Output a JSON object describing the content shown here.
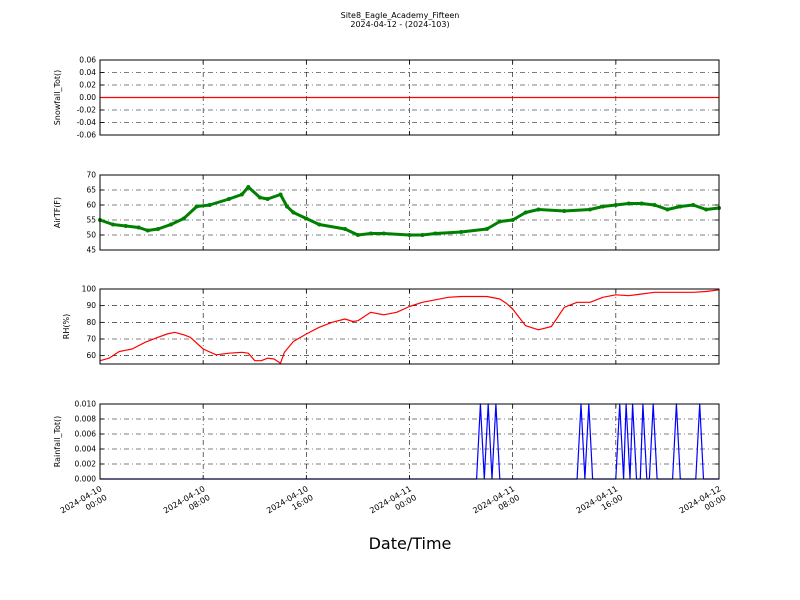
{
  "figure": {
    "title": "Site8_Eagle_Academy_Fifteen",
    "subtitle": "2024-04-12 - (2024-103)",
    "xlabel": "Date/Time"
  },
  "chart_data": [
    {
      "type": "line",
      "ylabel": "Snowfall_Tot()",
      "color": "#ff0000",
      "ylim": [
        -0.06,
        0.06
      ],
      "yticks": [
        "0.06",
        "0.04",
        "0.02",
        "0.00",
        "-0.02",
        "-0.04",
        "-0.06"
      ],
      "xlim": [
        0,
        48
      ],
      "grid": true,
      "series": [
        {
          "x": [
            0,
            48
          ],
          "y": [
            0,
            0
          ]
        }
      ]
    },
    {
      "type": "line",
      "ylabel": "AirTF(F)",
      "color": "#008000",
      "marker": true,
      "ylim": [
        45,
        70
      ],
      "yticks": [
        "70",
        "65",
        "60",
        "55",
        "50",
        "45"
      ],
      "xlim": [
        0,
        48
      ],
      "grid": true,
      "series": [
        {
          "x": [
            0,
            1,
            2,
            3,
            3.7,
            4.5,
            5.5,
            6.5,
            7.5,
            8.5,
            10,
            11,
            11.5,
            12.4,
            13,
            14,
            14.5,
            15,
            16,
            17,
            19,
            20,
            21,
            22,
            24,
            25,
            26,
            28,
            30,
            31,
            32,
            33,
            34,
            36,
            38,
            39,
            40,
            41,
            42,
            43,
            44,
            45,
            46,
            47,
            48
          ],
          "y": [
            55,
            53.5,
            53,
            52.5,
            51.5,
            52,
            53.5,
            55.5,
            59.5,
            60,
            62,
            63.5,
            66,
            62.5,
            62,
            63.5,
            59.5,
            57.5,
            55.5,
            53.5,
            52,
            50,
            50.5,
            50.5,
            50,
            50,
            50.5,
            51,
            52,
            54.5,
            55,
            57.5,
            58.5,
            58,
            58.5,
            59.5,
            60,
            60.5,
            60.5,
            60,
            58.5,
            59.5,
            60,
            58.5,
            59
          ]
        }
      ]
    },
    {
      "type": "line",
      "ylabel": "RH(%)",
      "color": "#ff0000",
      "ylim": [
        55,
        100
      ],
      "yticks": [
        "100",
        "90",
        "80",
        "70",
        "60"
      ],
      "xlim": [
        0,
        48
      ],
      "grid": true,
      "series": [
        {
          "x": [
            0,
            0.7,
            1.5,
            2.5,
            3.5,
            4.5,
            5.2,
            5.8,
            6.5,
            7,
            8,
            9,
            10,
            11,
            11.5,
            12,
            12.5,
            13,
            13.5,
            14,
            14.3,
            15,
            16,
            17,
            18,
            19,
            19.6,
            20,
            21,
            22,
            23,
            24,
            25,
            26,
            27,
            28,
            29,
            30,
            31,
            31.5,
            32,
            33,
            34,
            35,
            36,
            37,
            38,
            39,
            40,
            41,
            42,
            43,
            44,
            45,
            46,
            47,
            48
          ],
          "y": [
            57,
            58.5,
            62.5,
            64,
            68,
            71,
            73,
            74,
            72.5,
            71,
            64,
            60.5,
            61.5,
            62,
            61.5,
            57,
            57,
            58.5,
            58,
            55.5,
            62,
            68.5,
            73,
            77,
            80,
            82,
            80.5,
            81,
            86,
            84.5,
            86,
            89.5,
            92,
            93.5,
            95,
            95.5,
            95.5,
            95.5,
            94,
            91.5,
            88,
            78,
            75.5,
            77.5,
            89,
            92,
            92,
            95,
            96.5,
            96,
            97,
            98,
            98,
            98,
            98,
            98.5,
            99.5
          ]
        }
      ]
    },
    {
      "type": "line",
      "ylabel": "Rainfall_Tot()",
      "color": "#0000ff",
      "ylim": [
        0,
        0.01
      ],
      "yticks": [
        "0.010",
        "0.008",
        "0.006",
        "0.004",
        "0.002",
        "0.000"
      ],
      "xlim": [
        0,
        48
      ],
      "grid": true,
      "series": [
        {
          "x": [
            0,
            29.2,
            29.5,
            29.8,
            30.1,
            30.4,
            30.7,
            31,
            37,
            37.3,
            37.6,
            37.9,
            38.2,
            40,
            40.3,
            40.6,
            40.8,
            41.1,
            41.3,
            41.6,
            41.9,
            42.1,
            42.4,
            42.6,
            42.9,
            43.2,
            44.4,
            44.7,
            45,
            46.2,
            46.5,
            46.8,
            48
          ],
          "y": [
            0,
            0,
            0.01,
            0,
            0.01,
            0,
            0.01,
            0,
            0,
            0.01,
            0,
            0.01,
            0,
            0,
            0.01,
            0,
            0.01,
            0,
            0.01,
            0,
            0,
            0.01,
            0,
            0,
            0.01,
            0,
            0,
            0.01,
            0,
            0,
            0.01,
            0,
            0
          ]
        }
      ]
    }
  ],
  "x_axis": {
    "ticks": [
      {
        "x": 0,
        "line1": "2024-04-10",
        "line2": "00:00"
      },
      {
        "x": 8,
        "line1": "2024-04-10",
        "line2": "08:00"
      },
      {
        "x": 16,
        "line1": "2024-04-10",
        "line2": "16:00"
      },
      {
        "x": 24,
        "line1": "2024-04-11",
        "line2": "00:00"
      },
      {
        "x": 32,
        "line1": "2024-04-11",
        "line2": "08:00"
      },
      {
        "x": 40,
        "line1": "2024-04-11",
        "line2": "16:00"
      },
      {
        "x": 48,
        "line1": "2024-04-12",
        "line2": "00:00"
      }
    ]
  }
}
